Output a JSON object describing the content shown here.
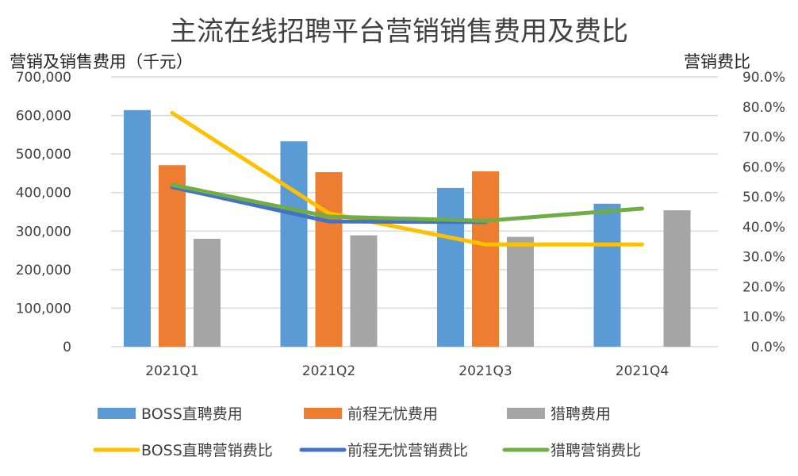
{
  "chart_data": {
    "type": "bar+line",
    "title": "主流在线招聘平台营销销售费用及费比",
    "ylabel": "营销及销售费用（千元）",
    "y2label": "营销费比",
    "categories": [
      "2021Q1",
      "2021Q2",
      "2021Q3",
      "2021Q4"
    ],
    "ylim": [
      0,
      700000
    ],
    "yticks": [
      "0",
      "100,000",
      "200,000",
      "300,000",
      "400,000",
      "500,000",
      "600,000",
      "700,000"
    ],
    "y2lim": [
      0,
      90
    ],
    "y2ticks": [
      "0.0%",
      "10.0%",
      "20.0%",
      "30.0%",
      "40.0%",
      "50.0%",
      "60.0%",
      "70.0%",
      "80.0%",
      "90.0%"
    ],
    "grid": true,
    "legend": "bottom",
    "bar_series": [
      {
        "name": "BOSS直聘费用",
        "color": "#5b9bd5",
        "values": [
          614000,
          533000,
          412000,
          371000
        ]
      },
      {
        "name": "前程无忧费用",
        "color": "#ed7d31",
        "values": [
          471000,
          453000,
          455000,
          null
        ]
      },
      {
        "name": "猎聘费用",
        "color": "#a5a5a5",
        "values": [
          280000,
          289000,
          285000,
          354000
        ]
      }
    ],
    "line_series": [
      {
        "name": "BOSS直聘营销费比",
        "color": "#ffc000",
        "values": [
          78.0,
          44.5,
          34.1,
          34.1
        ]
      },
      {
        "name": "前程无忧营销费比",
        "color": "#4472c4",
        "values": [
          53.3,
          41.8,
          41.6,
          null
        ]
      },
      {
        "name": "猎聘营销费比",
        "color": "#70ad47",
        "values": [
          54.0,
          43.4,
          42.0,
          46.1
        ]
      }
    ]
  }
}
